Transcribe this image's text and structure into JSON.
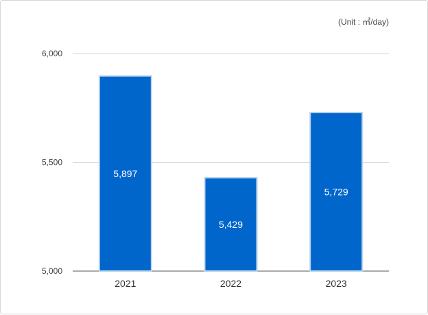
{
  "chart_data": {
    "type": "bar",
    "unit_label": "(Unit : ㎥/day)",
    "categories": [
      "2021",
      "2022",
      "2023"
    ],
    "values": [
      5897,
      5429,
      5729
    ],
    "value_labels": [
      "5,897",
      "5,429",
      "5,729"
    ],
    "ylim": [
      5000,
      6000
    ],
    "y_ticks": [
      5000,
      5500,
      6000
    ],
    "y_tick_labels": [
      "5,000",
      "5,500",
      "6,000"
    ],
    "grid": true,
    "bar_color": "#0066cc",
    "bar_border_color": "#bcd6ee",
    "grid_color": "#d4d4d4"
  }
}
